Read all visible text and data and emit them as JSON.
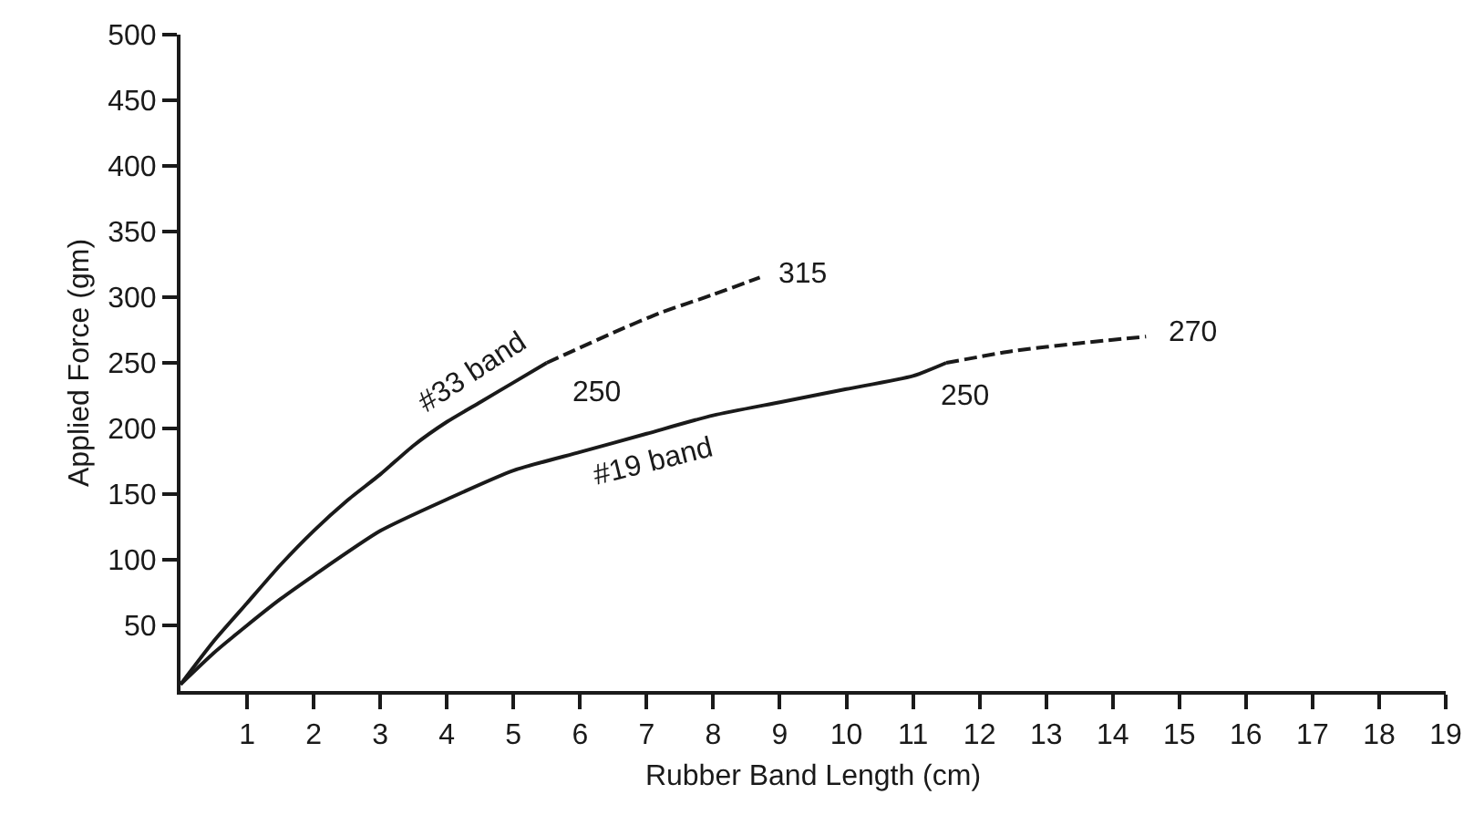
{
  "chart_data": {
    "type": "line",
    "xlabel": "Rubber Band Length (cm)",
    "ylabel": "Applied Force (gm)",
    "xlim": [
      0,
      19
    ],
    "xticks": [
      1,
      2,
      3,
      4,
      5,
      6,
      7,
      8,
      9,
      10,
      11,
      12,
      13,
      14,
      15,
      16,
      17,
      18,
      19
    ],
    "ylim": [
      0,
      500
    ],
    "yticks": [
      50,
      100,
      150,
      200,
      250,
      300,
      350,
      400,
      450,
      500
    ],
    "legend": false,
    "marker": "none",
    "series": [
      {
        "name": "#33 band",
        "color": "#1a1a1a",
        "line_style": "solid",
        "x": [
          0,
          0.5,
          1,
          1.5,
          2,
          2.5,
          3,
          3.5,
          4,
          4.5,
          5,
          5.5
        ],
        "values": [
          5,
          38,
          67,
          96,
          122,
          145,
          165,
          187,
          205,
          220,
          235,
          250
        ]
      },
      {
        "color": "#1a1a1a",
        "line_style": "dashed",
        "x": [
          5.5,
          6.5,
          7.2,
          8,
          8.7
        ],
        "values": [
          250,
          273,
          288,
          302,
          315
        ]
      },
      {
        "name": "#19 band",
        "color": "#1a1a1a",
        "line_style": "solid",
        "x": [
          0,
          0.5,
          1,
          1.5,
          2,
          3,
          4,
          5,
          6,
          7,
          8,
          9,
          10,
          11,
          11.5
        ],
        "values": [
          5,
          29,
          50,
          70,
          88,
          122,
          146,
          168,
          182,
          196,
          210,
          220,
          230,
          240,
          250
        ]
      },
      {
        "color": "#1a1a1a",
        "line_style": "dashed",
        "x": [
          11.5,
          12.5,
          13.5,
          14.5
        ],
        "values": [
          250,
          259,
          265,
          270
        ]
      }
    ],
    "annotations": [
      {
        "text": "250",
        "x": 5.5,
        "y": 250
      },
      {
        "text": "315",
        "x": 8.7,
        "y": 315
      },
      {
        "text": "250",
        "x": 11.5,
        "y": 250
      },
      {
        "text": "270",
        "x": 14.5,
        "y": 270
      }
    ]
  }
}
